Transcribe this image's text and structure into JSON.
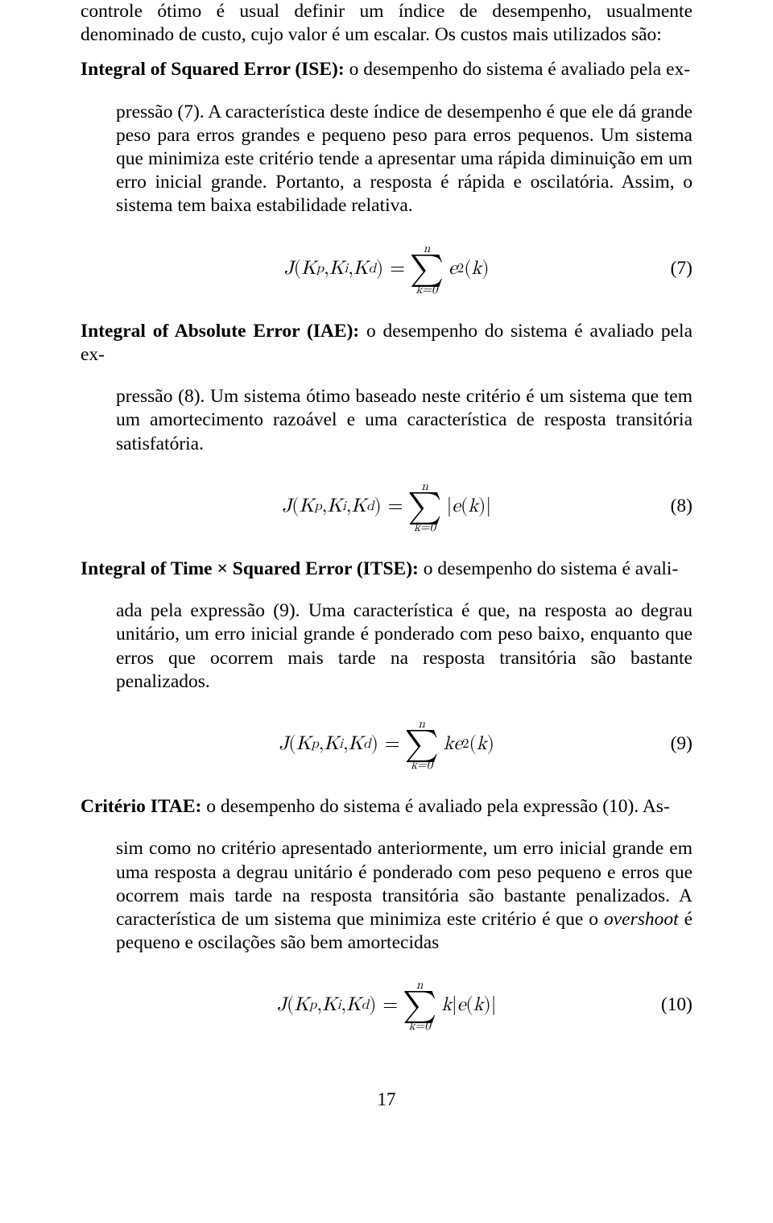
{
  "intro": {
    "p1": "controle ótimo é usual definir um índice de desempenho, usualmente denominado de custo, cujo valor é um escalar. Os custos mais utilizados são:"
  },
  "ise": {
    "label": "Integral of Squared Error (ISE):",
    "first": " o desempenho do sistema é avaliado pela ex-",
    "rest": "pressão (7). A característica deste índice de desempenho é que ele dá grande peso para erros grandes e pequeno peso para erros pequenos. Um sistema que minimiza este critério tende a apresentar uma rápida diminuição em um erro inicial grande. Portanto, a resposta é rápida e oscilatória. Assim, o sistema tem baixa estabilidade relativa."
  },
  "eq7": {
    "lhs_J": "J",
    "lhs_open": "(",
    "Kp": "K",
    "p": "p",
    "comma": ", ",
    "Ki": "K",
    "i": "i",
    "Kd": "K",
    "d": "d",
    "lhs_close": ") = ",
    "upper": "n",
    "lower": "k=0",
    "e": "e",
    "exp": "2",
    "open": "(",
    "k": "k",
    "close": ")",
    "num": "(7)"
  },
  "iae": {
    "label": "Integral of Absolute Error (IAE):",
    "first": " o desempenho do sistema é avaliado pela ex-",
    "rest": "pressão (8). Um sistema ótimo baseado neste critério é um sistema que tem um amortecimento razoável e uma característica de resposta transitória satisfatória."
  },
  "eq8": {
    "upper": "n",
    "lower": "k=0",
    "bar1": "|",
    "e": "e",
    "open": "(",
    "k": "k",
    "close": ")",
    "bar2": "|",
    "num": "(8)"
  },
  "itse": {
    "label": "Integral of Time × Squared Error (ITSE):",
    "first": " o desempenho do sistema é avali-",
    "rest": "ada pela expressão (9). Uma característica é que, na resposta ao degrau unitário, um erro inicial grande é ponderado com peso baixo, enquanto que erros que ocorrem mais tarde na resposta transitória são bastante penalizados."
  },
  "eq9": {
    "upper": "n",
    "lower": "k=0",
    "k1": "k",
    "e": "e",
    "exp": "2",
    "open": "(",
    "k2": "k",
    "close": ")",
    "num": "(9)"
  },
  "itae": {
    "label": "Critério ITAE:",
    "first": " o desempenho do sistema é avaliado pela expressão (10). As-",
    "rest_a": "sim como no critério apresentado anteriormente, um erro inicial grande em uma resposta a degrau unitário é ponderado com peso pequeno e erros que ocorrem mais tarde na resposta transitória são bastante penalizados. A característica de um sistema que minimiza este critério é que o ",
    "overshoot": "overshoot",
    "rest_b": " é pequeno e oscilações são bem amortecidas"
  },
  "eq10": {
    "upper": "n",
    "lower": "k=0",
    "k1": "k",
    "bar1": "|",
    "e": "e",
    "open": "(",
    "k2": "k",
    "close": ")",
    "bar2": "|",
    "num": "(10)"
  },
  "page_number": "17"
}
